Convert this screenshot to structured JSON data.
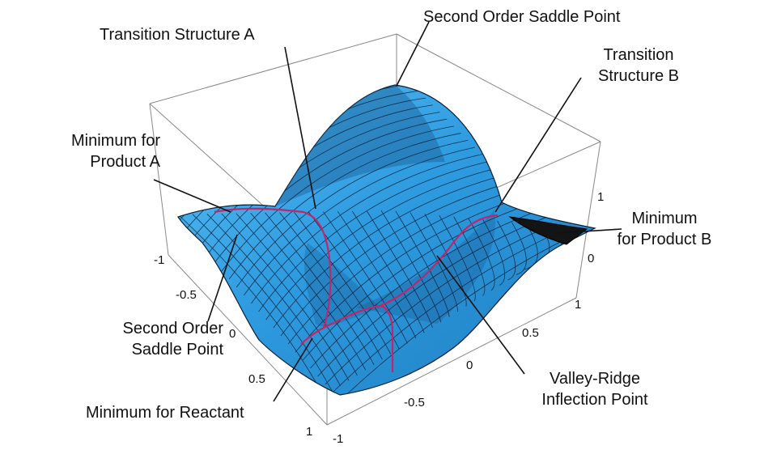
{
  "annotations": {
    "second_order_saddle_top": "Second Order Saddle Point",
    "transition_structure_a": "Transition Structure A",
    "transition_structure_b_line1": "Transition",
    "transition_structure_b_line2": "Structure B",
    "minimum_product_a_line1": "Minimum for",
    "minimum_product_a_line2": "Product A",
    "minimum_product_b_line1": "Minimum",
    "minimum_product_b_line2": "for Product B",
    "second_order_saddle_left_line1": "Second Order",
    "second_order_saddle_left_line2": "Saddle Point",
    "minimum_reactant": "Minimum for Reactant",
    "valley_ridge_line1": "Valley-Ridge",
    "valley_ridge_line2": "Inflection Point"
  },
  "axes": {
    "left_ticks": [
      "-1",
      "-0.5",
      "0",
      "0.5",
      "1"
    ],
    "front_ticks": [
      "-1",
      "-0.5",
      "0",
      "0.5",
      "1"
    ],
    "vertical_ticks": [
      "1",
      "0"
    ]
  },
  "colors": {
    "surface_fill": "#2e9be0",
    "surface_light": "#4db3ef",
    "surface_dark": "#1a5f96",
    "mesh_line": "#0b1f35",
    "reaction_path": "#c0266a",
    "box_line": "#777777"
  }
}
